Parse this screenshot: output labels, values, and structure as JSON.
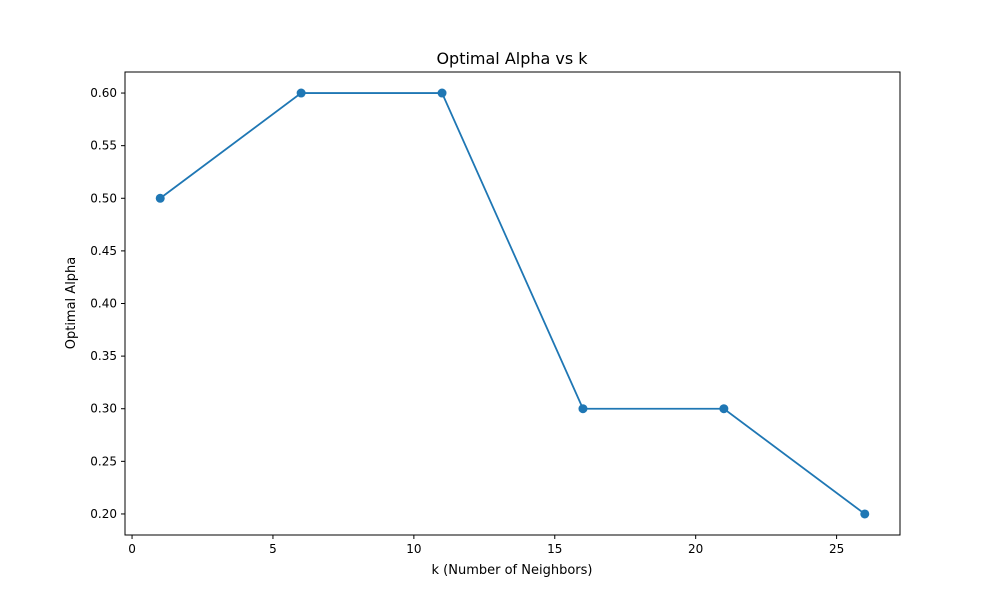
{
  "chart_data": {
    "type": "line",
    "title": "Optimal Alpha vs k",
    "xlabel": "k (Number of Neighbors)",
    "ylabel": "Optimal Alpha",
    "x": [
      1,
      6,
      11,
      16,
      21,
      26
    ],
    "series": [
      {
        "values": [
          0.5,
          0.6,
          0.6,
          0.3,
          0.3,
          0.2
        ],
        "color": "#1f77b4",
        "marker": "circle"
      }
    ],
    "xlim": [
      -0.25,
      27.25
    ],
    "ylim": [
      0.18,
      0.62
    ],
    "xticks": [
      "0",
      "5",
      "10",
      "15",
      "20",
      "25"
    ],
    "yticks": [
      "0.20",
      "0.25",
      "0.30",
      "0.35",
      "0.40",
      "0.45",
      "0.50",
      "0.55",
      "0.60"
    ],
    "grid": false,
    "legend": "none"
  }
}
